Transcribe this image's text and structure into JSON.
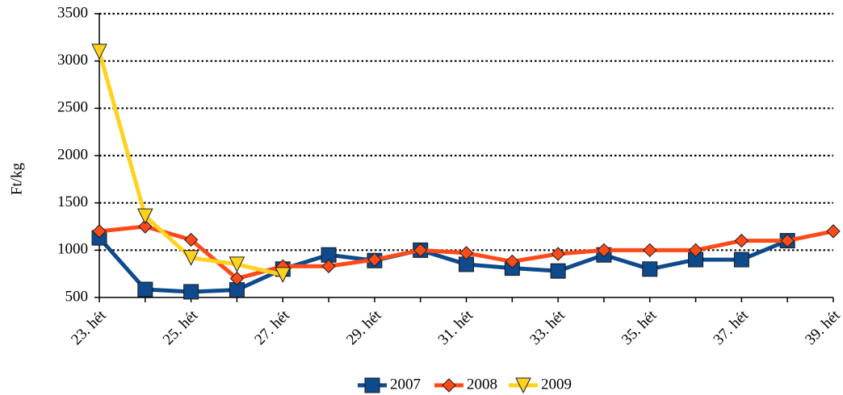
{
  "chart_data": {
    "type": "line",
    "ylabel": "Ft/kg",
    "categories": [
      "23. hét",
      null,
      "25. hét",
      null,
      "27. hét",
      null,
      "29. hét",
      null,
      "31. hét",
      null,
      "33. hét",
      null,
      "35. hét",
      null,
      "37. hét",
      null,
      "39. hét"
    ],
    "series": [
      {
        "name": "2007",
        "color": "#0e4a8c",
        "marker": "square",
        "values": [
          1130,
          585,
          560,
          580,
          800,
          950,
          890,
          1000,
          850,
          810,
          780,
          950,
          800,
          900,
          900,
          1100,
          null
        ]
      },
      {
        "name": "2008",
        "color": "#ff4a1a",
        "marker": "diamond",
        "values": [
          1200,
          1250,
          1110,
          700,
          830,
          830,
          900,
          1000,
          970,
          880,
          960,
          1000,
          1000,
          1000,
          1100,
          1100,
          1200
        ]
      },
      {
        "name": "2009",
        "color": "#ffd21f",
        "marker": "triangle-down",
        "values": [
          3100,
          1360,
          920,
          850,
          740,
          null,
          null,
          null,
          null,
          null,
          null,
          null,
          null,
          null,
          null,
          null,
          null
        ]
      }
    ],
    "ylim": [
      500,
      3500
    ],
    "yticks": [
      500,
      1000,
      1500,
      2000,
      2500,
      3000,
      3500
    ],
    "grid": true,
    "legend": "bottom"
  }
}
